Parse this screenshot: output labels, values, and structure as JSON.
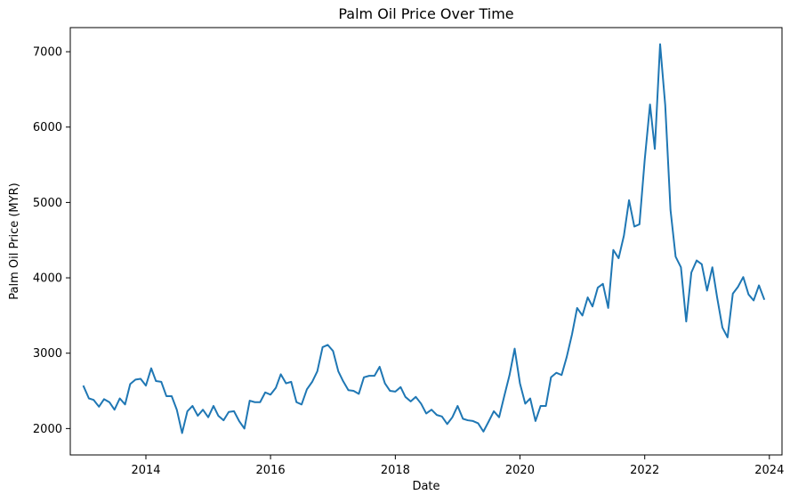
{
  "chart_data": {
    "type": "line",
    "title": "Palm Oil Price Over Time",
    "xlabel": "Date",
    "ylabel": "Palm Oil Price (MYR)",
    "x_ticks": [
      "2014",
      "2016",
      "2018",
      "2020",
      "2022",
      "2024"
    ],
    "y_ticks": [
      "2000",
      "3000",
      "4000",
      "5000",
      "6000",
      "7000"
    ],
    "xlim": [
      "2012-10-15",
      "2024-03-15"
    ],
    "ylim": [
      1650,
      7320
    ],
    "grid": false,
    "color": "#1f77b4",
    "series": [
      {
        "x": [
          "2013-01",
          "2013-02",
          "2013-03",
          "2013-04",
          "2013-05",
          "2013-06",
          "2013-07",
          "2013-08",
          "2013-09",
          "2013-10",
          "2013-11",
          "2013-12",
          "2014-01",
          "2014-02",
          "2014-03",
          "2014-04",
          "2014-05",
          "2014-06",
          "2014-07",
          "2014-08",
          "2014-09",
          "2014-10",
          "2014-11",
          "2014-12",
          "2015-01",
          "2015-02",
          "2015-03",
          "2015-04",
          "2015-05",
          "2015-06",
          "2015-07",
          "2015-08",
          "2015-09",
          "2015-10",
          "2015-11",
          "2015-12",
          "2016-01",
          "2016-02",
          "2016-03",
          "2016-04",
          "2016-05",
          "2016-06",
          "2016-07",
          "2016-08",
          "2016-09",
          "2016-10",
          "2016-11",
          "2016-12",
          "2017-01",
          "2017-02",
          "2017-03",
          "2017-04",
          "2017-05",
          "2017-06",
          "2017-07",
          "2017-08",
          "2017-09",
          "2017-10",
          "2017-11",
          "2017-12",
          "2018-01",
          "2018-02",
          "2018-03",
          "2018-04",
          "2018-05",
          "2018-06",
          "2018-07",
          "2018-08",
          "2018-09",
          "2018-10",
          "2018-11",
          "2018-12",
          "2019-01",
          "2019-02",
          "2019-03",
          "2019-04",
          "2019-05",
          "2019-06",
          "2019-07",
          "2019-08",
          "2019-09",
          "2019-10",
          "2019-11",
          "2019-12",
          "2020-01",
          "2020-02",
          "2020-03",
          "2020-04",
          "2020-05",
          "2020-06",
          "2020-07",
          "2020-08",
          "2020-09",
          "2020-10",
          "2020-11",
          "2020-12",
          "2021-01",
          "2021-02",
          "2021-03",
          "2021-04",
          "2021-05",
          "2021-06",
          "2021-07",
          "2021-08",
          "2021-09",
          "2021-10",
          "2021-11",
          "2021-12",
          "2022-01",
          "2022-02",
          "2022-03",
          "2022-04",
          "2022-05",
          "2022-06",
          "2022-07",
          "2022-08",
          "2022-09",
          "2022-10",
          "2022-11",
          "2022-12",
          "2023-01",
          "2023-02",
          "2023-03",
          "2023-04",
          "2023-05",
          "2023-06",
          "2023-07",
          "2023-08",
          "2023-09",
          "2023-10",
          "2023-11",
          "2023-12"
        ],
        "y": [
          2560,
          2400,
          2380,
          2290,
          2390,
          2350,
          2250,
          2400,
          2320,
          2590,
          2650,
          2660,
          2570,
          2800,
          2630,
          2620,
          2430,
          2430,
          2250,
          1940,
          2230,
          2300,
          2170,
          2250,
          2150,
          2300,
          2170,
          2110,
          2220,
          2230,
          2100,
          2000,
          2370,
          2350,
          2350,
          2480,
          2450,
          2540,
          2720,
          2600,
          2620,
          2350,
          2320,
          2520,
          2620,
          2760,
          3080,
          3110,
          3030,
          2760,
          2630,
          2510,
          2500,
          2460,
          2680,
          2700,
          2700,
          2820,
          2600,
          2500,
          2490,
          2550,
          2420,
          2360,
          2420,
          2330,
          2200,
          2250,
          2180,
          2160,
          2060,
          2150,
          2300,
          2130,
          2110,
          2100,
          2070,
          1960,
          2090,
          2230,
          2150,
          2430,
          2710,
          3060,
          2600,
          2330,
          2400,
          2100,
          2300,
          2300,
          2680,
          2740,
          2710,
          2950,
          3250,
          3600,
          3500,
          3740,
          3620,
          3870,
          3920,
          3600,
          4370,
          4260,
          4560,
          5030,
          4680,
          4710,
          5570,
          6300,
          5710,
          7100,
          6290,
          4900,
          4280,
          4140,
          3420,
          4070,
          4230,
          4180,
          3830,
          4140,
          3740,
          3340,
          3210,
          3790,
          3880,
          4010,
          3780,
          3700,
          3900,
          3720
        ]
      }
    ]
  }
}
